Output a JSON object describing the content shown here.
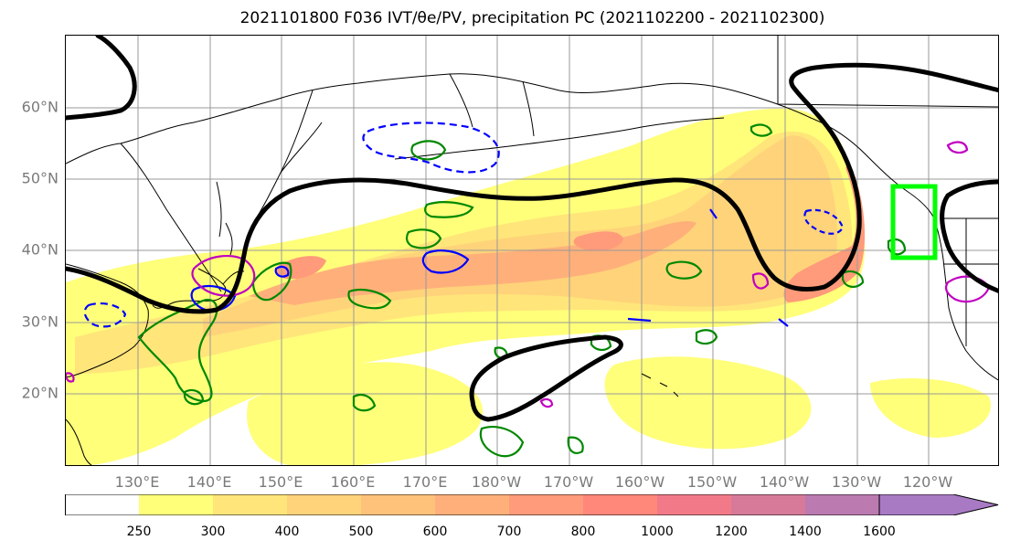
{
  "title": "2021101800 F036 IVT/θe/PV, precipitation PC (2021102200 - 2021102300)",
  "lat_labels": [
    "60°N",
    "50°N",
    "40°N",
    "30°N",
    "20°N"
  ],
  "lon_labels": [
    "130°E",
    "140°E",
    "150°E",
    "160°E",
    "170°E",
    "180°W",
    "170°W",
    "160°W",
    "150°W",
    "140°W",
    "130°W",
    "120°W"
  ],
  "colorbar": {
    "ticks": [
      "250",
      "300",
      "400",
      "500",
      "600",
      "700",
      "800",
      "1000",
      "1200",
      "1400",
      "1600"
    ],
    "colors": [
      "#ffffff",
      "#ffff7a",
      "#ffe57a",
      "#ffd37a",
      "#ffc27a",
      "#ffb07a",
      "#ff9a7a",
      "#ff887a",
      "#f27a88",
      "#d77a9a",
      "#bb7ab0",
      "#a87ac4"
    ]
  },
  "legend_colors": {
    "ivt_shading": "#ffd37a",
    "theta_e_contour": "#000000",
    "pv_green": "#008800",
    "pv_blue": "#0000ff",
    "pv_magenta": "#c000c0",
    "target_box": "#00ff00",
    "grid": "#999999"
  }
}
